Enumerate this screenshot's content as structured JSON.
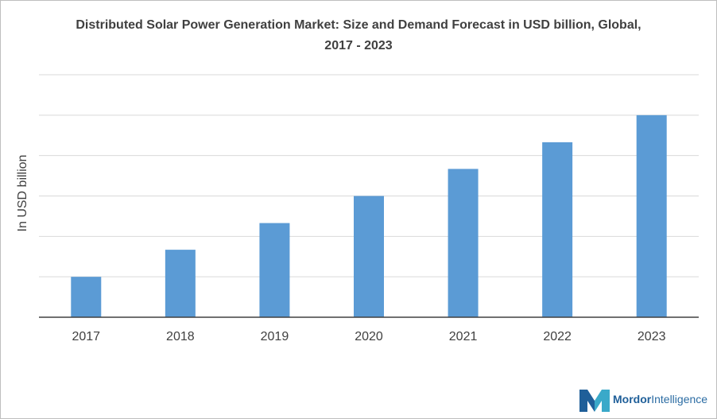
{
  "chart_data": {
    "type": "bar",
    "title": "Distributed Solar Power Generation Market: Size and Demand Forecast in USD billion, Global, 2017 - 2023",
    "xlabel": "",
    "ylabel": "In USD billion",
    "categories": [
      "2017",
      "2018",
      "2019",
      "2020",
      "2021",
      "2022",
      "2023"
    ],
    "values": [
      1,
      1.67,
      2.33,
      3,
      3.67,
      4.33,
      5
    ],
    "ylim": [
      0,
      6
    ],
    "grid": true,
    "bar_color": "#5b9bd5"
  },
  "branding": {
    "name_bold": "Mordor",
    "name_rest": "Intelligence",
    "logo_colors": [
      "#1f5f99",
      "#3aa9c9"
    ]
  }
}
